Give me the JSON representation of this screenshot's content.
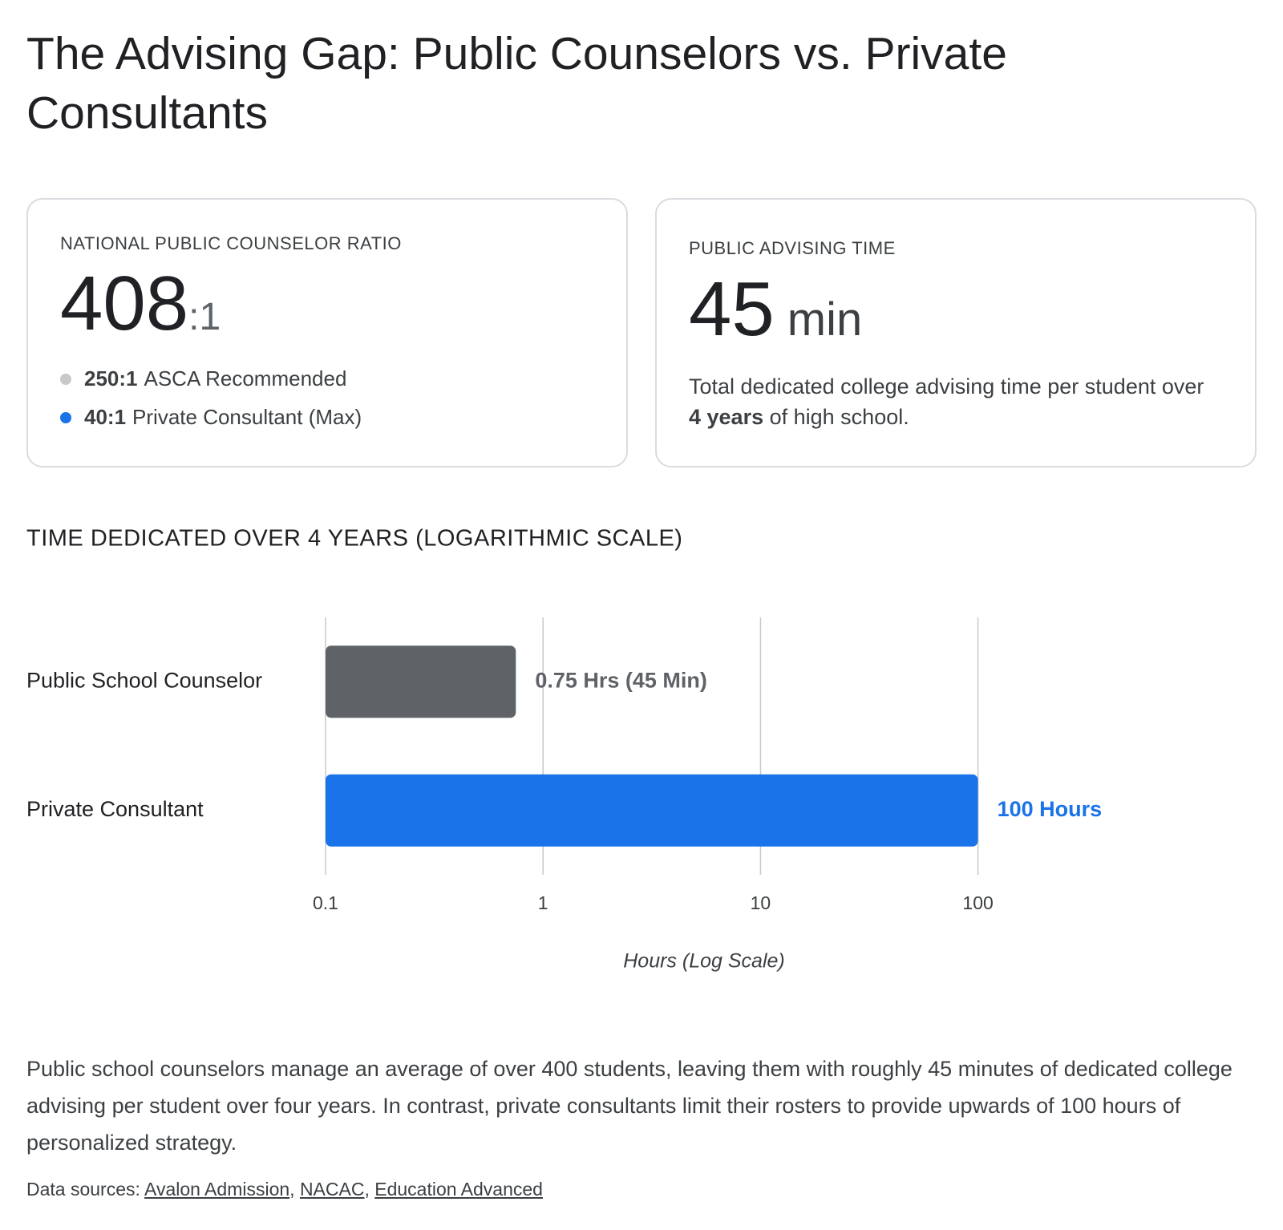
{
  "title": "The Advising Gap: Public Counselors vs. Private Consultants",
  "cards": [
    {
      "label": "NATIONAL PUBLIC COUNSELOR RATIO",
      "value": 408,
      "suffix": ":1",
      "items": [
        {
          "bold": "250:1",
          "text": "ASCA Recommended",
          "color": "#c8c8c8"
        },
        {
          "bold": "40:1",
          "text": "Private Consultant (Max)",
          "color": "#1a73e8"
        }
      ]
    },
    {
      "label": "PUBLIC ADVISING TIME",
      "value": 45,
      "unit": "min",
      "description": {
        "before": "Total dedicated college advising time per student over",
        "bold": "4 years",
        "after": "of high school."
      }
    }
  ],
  "chart_data": {
    "type": "bar",
    "orientation": "horizontal",
    "title": "TIME DEDICATED OVER 4 YEARS (LOGARITHMIC SCALE)",
    "categories": [
      "Public School Counselor",
      "Private Consultant"
    ],
    "values": [
      0.75,
      100
    ],
    "value_labels": [
      "0.75 Hrs (45 Min)",
      "100 Hours"
    ],
    "colors": [
      "#5f6368",
      "#1a73e8"
    ],
    "xlim": [
      0.1,
      300
    ],
    "xticks": [
      0.1,
      1,
      10,
      100
    ],
    "log_scale": true,
    "grid": true,
    "x_label": "Hours (Log Scale)"
  },
  "summary": "Public school counselors manage an average of over 400 students, leaving them with roughly 45 minutes of dedicated college advising per student over four years. In contrast, private consultants limit their rosters to provide upwards of 100 hours of personalized strategy.",
  "sources": {
    "label": "Data sources:",
    "links": [
      "Avalon Admission",
      "NACAC",
      "Education Advanced"
    ]
  }
}
